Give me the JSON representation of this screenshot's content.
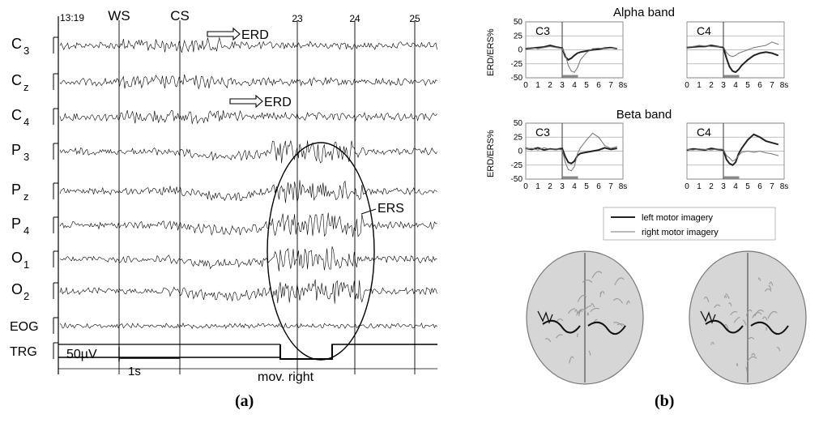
{
  "panel_a": {
    "caption": "(a)",
    "time_start": "13:19",
    "markers": [
      {
        "label": "WS"
      },
      {
        "label": "CS"
      },
      {
        "label": "23"
      },
      {
        "label": "24"
      },
      {
        "label": "25"
      }
    ],
    "channels": [
      {
        "name": "C3",
        "base": "C",
        "sub": "3"
      },
      {
        "name": "Cz",
        "base": "C",
        "sub": "z"
      },
      {
        "name": "C4",
        "base": "C",
        "sub": "4"
      },
      {
        "name": "P3",
        "base": "P",
        "sub": "3"
      },
      {
        "name": "Pz",
        "base": "P",
        "sub": "z"
      },
      {
        "name": "P4",
        "base": "P",
        "sub": "4"
      },
      {
        "name": "O1",
        "base": "O",
        "sub": "1"
      },
      {
        "name": "O2",
        "base": "O",
        "sub": "2"
      },
      {
        "name": "EOG",
        "base": "EOG",
        "sub": ""
      },
      {
        "name": "TRG",
        "base": "TRG",
        "sub": ""
      }
    ],
    "annotations": {
      "erd_1": "ERD",
      "erd_2": "ERD",
      "ers": "ERS",
      "scale_amplitude": "50µV",
      "scale_time": "1s",
      "trigger_label": "mov. right"
    }
  },
  "panel_b": {
    "caption": "(b)",
    "legend": {
      "left": "left motor imagery",
      "right": "right motor imagery"
    }
  },
  "chart_data": [
    {
      "type": "line",
      "title": "Alpha band",
      "subplot": "C3",
      "ylabel": "ERD/ERS%",
      "xlabel": "",
      "x_ticks": [
        "0",
        "1",
        "2",
        "3",
        "4",
        "5",
        "6",
        "7",
        "8s"
      ],
      "y_ticks": [
        "50",
        "25",
        "0",
        "-25",
        "-50"
      ],
      "xlim": [
        0,
        8
      ],
      "ylim": [
        -50,
        50
      ],
      "x": [
        0,
        0.5,
        1,
        1.5,
        2,
        2.5,
        3,
        3.25,
        3.5,
        3.75,
        4,
        4.25,
        4.5,
        5,
        5.5,
        6,
        6.5,
        7,
        7.5
      ],
      "series": [
        {
          "name": "left motor imagery",
          "values": [
            2,
            3,
            4,
            5,
            8,
            5,
            3,
            -12,
            -18,
            -15,
            -10,
            -6,
            -4,
            -2,
            0,
            1,
            3,
            4,
            2
          ]
        },
        {
          "name": "right motor imagery",
          "values": [
            3,
            4,
            2,
            4,
            6,
            4,
            2,
            -8,
            -28,
            -38,
            -40,
            -32,
            -18,
            -5,
            2,
            3,
            2,
            3,
            2
          ]
        }
      ]
    },
    {
      "type": "line",
      "title": "Alpha band",
      "subplot": "C4",
      "ylabel": "ERD/ERS%",
      "xlabel": "",
      "x_ticks": [
        "0",
        "1",
        "2",
        "3",
        "4",
        "5",
        "6",
        "7",
        "8s"
      ],
      "y_ticks": [
        "50",
        "25",
        "0",
        "-25",
        "-50"
      ],
      "xlim": [
        0,
        8
      ],
      "ylim": [
        -50,
        50
      ],
      "x": [
        0,
        0.5,
        1,
        1.5,
        2,
        2.5,
        3,
        3.25,
        3.5,
        3.75,
        4,
        4.25,
        4.5,
        5,
        5.5,
        6,
        6.5,
        7,
        7.5
      ],
      "series": [
        {
          "name": "left motor imagery",
          "values": [
            4,
            5,
            6,
            6,
            8,
            6,
            4,
            -15,
            -30,
            -38,
            -40,
            -35,
            -28,
            -18,
            -10,
            -6,
            -4,
            -6,
            -10
          ]
        },
        {
          "name": "right motor imagery",
          "values": [
            5,
            6,
            8,
            7,
            6,
            5,
            6,
            -5,
            -10,
            -12,
            -10,
            -6,
            -4,
            0,
            4,
            6,
            8,
            14,
            10
          ]
        }
      ]
    },
    {
      "type": "line",
      "title": "Beta band",
      "subplot": "C3",
      "ylabel": "ERD/ERS%",
      "xlabel": "",
      "x_ticks": [
        "0",
        "1",
        "2",
        "3",
        "4",
        "5",
        "6",
        "7",
        "8s"
      ],
      "y_ticks": [
        "50",
        "25",
        "0",
        "-25",
        "-50"
      ],
      "xlim": [
        0,
        8
      ],
      "ylim": [
        -50,
        50
      ],
      "x": [
        0,
        0.5,
        1,
        1.5,
        2,
        2.5,
        3,
        3.25,
        3.5,
        3.75,
        4,
        4.25,
        4.5,
        5,
        5.5,
        6,
        6.5,
        7,
        7.5
      ],
      "series": [
        {
          "name": "left motor imagery",
          "values": [
            5,
            3,
            6,
            2,
            4,
            3,
            5,
            -10,
            -20,
            -22,
            -18,
            -8,
            -4,
            -2,
            0,
            2,
            6,
            3,
            5
          ]
        },
        {
          "name": "right motor imagery",
          "values": [
            4,
            5,
            2,
            6,
            3,
            4,
            2,
            -20,
            -33,
            -35,
            -28,
            -5,
            6,
            20,
            32,
            25,
            10,
            5,
            8
          ]
        }
      ]
    },
    {
      "type": "line",
      "title": "Beta band",
      "subplot": "C4",
      "ylabel": "ERD/ERS%",
      "xlabel": "",
      "x_ticks": [
        "0",
        "1",
        "2",
        "3",
        "4",
        "5",
        "6",
        "7",
        "8s"
      ],
      "y_ticks": [
        "50",
        "25",
        "0",
        "-25",
        "-50"
      ],
      "xlim": [
        0,
        8
      ],
      "ylim": [
        -50,
        50
      ],
      "x": [
        0,
        0.5,
        1,
        1.5,
        2,
        2.5,
        3,
        3.25,
        3.5,
        3.75,
        4,
        4.25,
        4.5,
        5,
        5.5,
        6,
        6.5,
        7,
        7.5
      ],
      "series": [
        {
          "name": "left motor imagery",
          "values": [
            2,
            4,
            3,
            2,
            5,
            3,
            2,
            -15,
            -22,
            -25,
            -20,
            -5,
            5,
            20,
            30,
            25,
            18,
            15,
            12
          ]
        },
        {
          "name": "right motor imagery",
          "values": [
            3,
            2,
            4,
            3,
            2,
            4,
            3,
            -8,
            -12,
            -18,
            -15,
            -8,
            -2,
            0,
            -2,
            0,
            -3,
            -5,
            -8
          ]
        }
      ]
    }
  ]
}
